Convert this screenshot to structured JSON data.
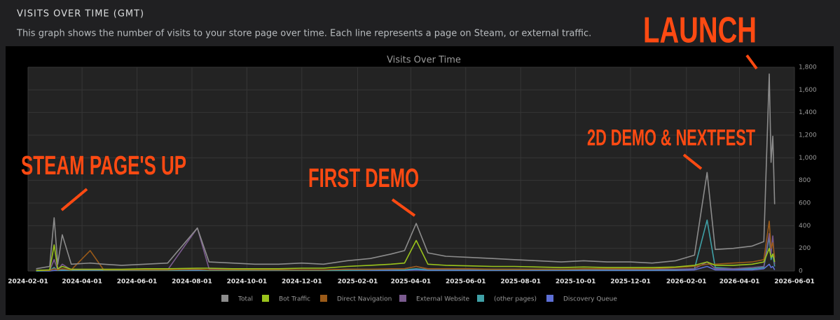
{
  "header": {
    "title": "VISITS OVER TIME (GMT)",
    "description": "This graph shows the number of visits to your store page over time. Each line represents a page on Steam, or external traffic."
  },
  "chart_data": {
    "type": "line",
    "title": "Visits Over Time",
    "x": [
      "2024-02-10",
      "2024-02-25",
      "2024-03-01",
      "2024-03-05",
      "2024-03-10",
      "2024-03-20",
      "2024-04-10",
      "2024-04-25",
      "2024-05-15",
      "2024-06-10",
      "2024-07-05",
      "2024-08-07",
      "2024-08-20",
      "2024-09-15",
      "2024-10-10",
      "2024-11-05",
      "2024-12-01",
      "2024-12-25",
      "2025-01-20",
      "2025-02-15",
      "2025-03-10",
      "2025-03-25",
      "2025-04-07",
      "2025-04-20",
      "2025-05-10",
      "2025-06-05",
      "2025-07-01",
      "2025-07-25",
      "2025-08-20",
      "2025-09-15",
      "2025-10-10",
      "2025-11-05",
      "2025-12-01",
      "2025-12-25",
      "2026-01-20",
      "2026-02-10",
      "2026-02-24",
      "2026-03-05",
      "2026-03-25",
      "2026-04-15",
      "2026-04-28",
      "2026-05-04",
      "2026-05-06",
      "2026-05-08",
      "2026-05-10"
    ],
    "series": [
      {
        "name": "Total",
        "color": "#8c8c8c",
        "values": [
          20,
          40,
          470,
          60,
          320,
          60,
          70,
          60,
          50,
          60,
          70,
          380,
          80,
          70,
          60,
          60,
          70,
          60,
          90,
          110,
          150,
          180,
          420,
          160,
          130,
          120,
          110,
          100,
          90,
          80,
          90,
          80,
          80,
          70,
          90,
          140,
          870,
          190,
          200,
          220,
          260,
          1740,
          960,
          1190,
          590
        ]
      },
      {
        "name": "Bot Traffic",
        "color": "#9ac31c",
        "values": [
          5,
          10,
          230,
          20,
          40,
          15,
          15,
          15,
          15,
          20,
          20,
          25,
          25,
          20,
          20,
          20,
          25,
          25,
          40,
          50,
          60,
          70,
          270,
          60,
          50,
          45,
          40,
          40,
          35,
          30,
          35,
          30,
          30,
          30,
          35,
          50,
          80,
          50,
          50,
          60,
          80,
          200,
          120,
          150,
          80
        ]
      },
      {
        "name": "Direct Navigation",
        "color": "#9a5a18",
        "values": [
          5,
          5,
          20,
          10,
          20,
          10,
          180,
          10,
          10,
          10,
          10,
          15,
          10,
          10,
          10,
          10,
          10,
          10,
          15,
          15,
          20,
          20,
          40,
          20,
          20,
          20,
          15,
          15,
          15,
          15,
          20,
          20,
          20,
          20,
          30,
          40,
          60,
          60,
          70,
          80,
          100,
          440,
          200,
          250,
          120
        ]
      },
      {
        "name": "External Website",
        "color": "#7a5a8e",
        "values": [
          5,
          5,
          100,
          10,
          60,
          10,
          10,
          10,
          10,
          10,
          10,
          380,
          20,
          15,
          10,
          10,
          10,
          10,
          15,
          15,
          15,
          20,
          40,
          15,
          15,
          15,
          15,
          15,
          15,
          15,
          15,
          15,
          15,
          15,
          15,
          20,
          80,
          20,
          20,
          30,
          40,
          330,
          150,
          310,
          60
        ]
      },
      {
        "name": "(other pages)",
        "color": "#3fa0a6",
        "values": [
          0,
          5,
          30,
          5,
          10,
          5,
          5,
          5,
          5,
          5,
          5,
          10,
          5,
          5,
          5,
          5,
          5,
          5,
          5,
          10,
          10,
          10,
          20,
          10,
          10,
          10,
          10,
          10,
          10,
          10,
          10,
          10,
          10,
          10,
          10,
          20,
          450,
          30,
          20,
          20,
          30,
          300,
          100,
          150,
          40
        ]
      },
      {
        "name": "Discovery Queue",
        "color": "#5d6fd6",
        "values": [
          0,
          0,
          5,
          5,
          5,
          5,
          5,
          5,
          5,
          5,
          5,
          5,
          5,
          5,
          5,
          5,
          5,
          5,
          5,
          5,
          5,
          5,
          10,
          5,
          5,
          5,
          5,
          5,
          5,
          5,
          5,
          5,
          5,
          5,
          5,
          10,
          40,
          10,
          10,
          10,
          20,
          60,
          30,
          40,
          10
        ]
      }
    ],
    "xlim": [
      "2024-02-01",
      "2026-06-01"
    ],
    "xticks": [
      "2024-02-01",
      "2024-04-01",
      "2024-06-01",
      "2024-08-01",
      "2024-10-01",
      "2024-12-01",
      "2025-02-01",
      "2025-04-01",
      "2025-06-01",
      "2025-08-01",
      "2025-10-01",
      "2025-12-01",
      "2026-02-01",
      "2026-04-01",
      "2026-06-01"
    ],
    "ylim": [
      0,
      1800
    ],
    "yticks": [
      0,
      200,
      400,
      600,
      800,
      {
        "value": 1000,
        "label": "1,000"
      },
      {
        "value": 1200,
        "label": "1,200"
      },
      {
        "value": 1400,
        "label": "1,400"
      },
      {
        "value": 1600,
        "label": "1,600"
      },
      {
        "value": 1800,
        "label": "1,800"
      }
    ],
    "grid": true,
    "annotations": [
      "LAUNCH",
      "STEAM PAGE'S UP",
      "FIRST DEMO",
      "2D DEMO & NEXTFEST"
    ]
  }
}
